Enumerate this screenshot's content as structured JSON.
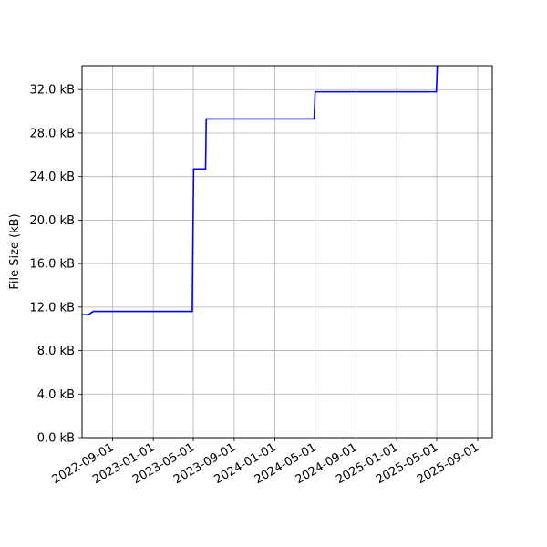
{
  "chart_data": {
    "type": "line",
    "title": "",
    "xlabel": "",
    "ylabel": "File Size (kB)",
    "grid": true,
    "legend": "none",
    "x_axis": {
      "type": "date",
      "range": [
        "2022-06-01",
        "2025-10-15"
      ],
      "ticks": [
        "2022-09-01",
        "2023-01-01",
        "2023-05-01",
        "2023-09-01",
        "2024-01-01",
        "2024-05-01",
        "2024-09-01",
        "2025-01-01",
        "2025-05-01",
        "2025-09-01"
      ]
    },
    "y_axis": {
      "range": [
        0,
        34.2
      ],
      "ticks": [
        0,
        4,
        8,
        12,
        16,
        20,
        24,
        28,
        32
      ],
      "tick_labels": [
        "0.0 kB",
        "4.0 kB",
        "8.0 kB",
        "12.0 kB",
        "16.0 kB",
        "20.0 kB",
        "24.0 kB",
        "28.0 kB",
        "32.0 kB"
      ]
    },
    "series": [
      {
        "color": "#0000ff",
        "points": [
          {
            "x": "2022-06-01",
            "y": 11.3
          },
          {
            "x": "2022-06-20",
            "y": 11.3
          },
          {
            "x": "2022-07-05",
            "y": 11.6
          },
          {
            "x": "2023-04-28",
            "y": 11.6
          },
          {
            "x": "2023-05-02",
            "y": 24.7
          },
          {
            "x": "2023-06-07",
            "y": 24.7
          },
          {
            "x": "2023-06-09",
            "y": 29.3
          },
          {
            "x": "2024-04-28",
            "y": 29.3
          },
          {
            "x": "2024-05-01",
            "y": 31.8
          },
          {
            "x": "2025-04-30",
            "y": 31.8
          },
          {
            "x": "2025-05-03",
            "y": 34.2
          }
        ]
      }
    ]
  }
}
